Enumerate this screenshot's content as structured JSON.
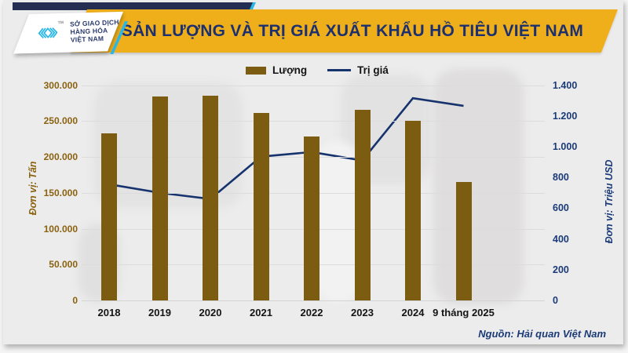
{
  "header": {
    "logo": {
      "org_lines": [
        "SỞ GIAO DỊCH",
        "HÀNG HÓA",
        "VIỆT NAM"
      ],
      "tm": "TM"
    },
    "title": "SẢN LƯỢNG VÀ TRỊ GIÁ XUẤT KHẨU HỒ TIÊU VIỆT NAM"
  },
  "chart_data": {
    "type": "bar+line combo",
    "categories": [
      "2018",
      "2019",
      "2020",
      "2021",
      "2022",
      "2023",
      "2024",
      "9 tháng 2025"
    ],
    "series": [
      {
        "name": "Lượng",
        "kind": "bar",
        "axis": "left",
        "color": "#7b5c10",
        "values": [
          233000,
          284000,
          285000,
          261000,
          228000,
          266000,
          250000,
          165000
        ]
      },
      {
        "name": "Trị giá",
        "kind": "line",
        "axis": "right",
        "color": "#16336e",
        "values": [
          755,
          700,
          660,
          935,
          965,
          910,
          1315,
          1265
        ]
      }
    ],
    "left_axis": {
      "label": "Đơn vị: Tấn",
      "min": 0,
      "max": 300000,
      "step": 50000,
      "tick_labels": [
        "0",
        "50.000",
        "100.000",
        "150.000",
        "200.000",
        "250.000",
        "300.000"
      ]
    },
    "right_axis": {
      "label": "Đơn vị: Triệu USD",
      "min": 0,
      "max": 1400,
      "step": 200,
      "tick_labels": [
        "0",
        "200",
        "400",
        "600",
        "800",
        "1.000",
        "1.200",
        "1.400"
      ]
    },
    "legend": [
      "Lượng",
      "Trị giá"
    ],
    "legend_position": "top",
    "grid": true
  },
  "footer": {
    "source": "Nguồn: Hải quan Việt Nam"
  },
  "colors": {
    "banner_gold": "#efaf1a",
    "title_navy": "#1c3070",
    "bar_brown": "#7b5c10",
    "line_navy": "#16336e",
    "left_axis_brown": "#8a6210",
    "right_axis_navy": "#1a3a78",
    "logo_cyan": "#2bb7e5",
    "topbar_navy": "#232e52"
  }
}
